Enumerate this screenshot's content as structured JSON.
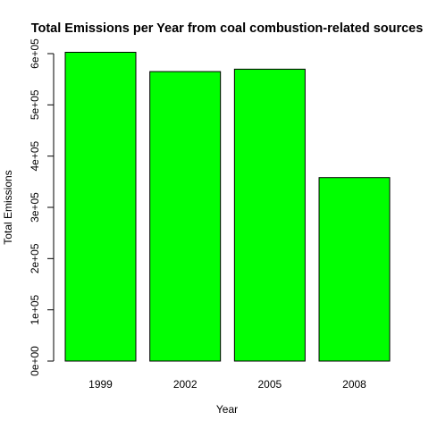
{
  "chart_data": {
    "type": "bar",
    "title": "Total Emissions per Year from coal combustion-related sources",
    "xlabel": "Year",
    "ylabel": "Total Emissions",
    "categories": [
      "1999",
      "2002",
      "2005",
      "2008"
    ],
    "values": [
      602624,
      564941,
      569654,
      358084
    ],
    "ylim": [
      0,
      600000
    ],
    "yticks": [
      0,
      100000,
      200000,
      300000,
      400000,
      500000,
      600000
    ],
    "ytick_labels": [
      "0e+00",
      "1e+05",
      "2e+05",
      "3e+05",
      "4e+05",
      "5e+05",
      "6e+05"
    ],
    "bar_color": "#00ff00",
    "bar_border_color": "#000000",
    "grid": false,
    "legend": "none"
  }
}
